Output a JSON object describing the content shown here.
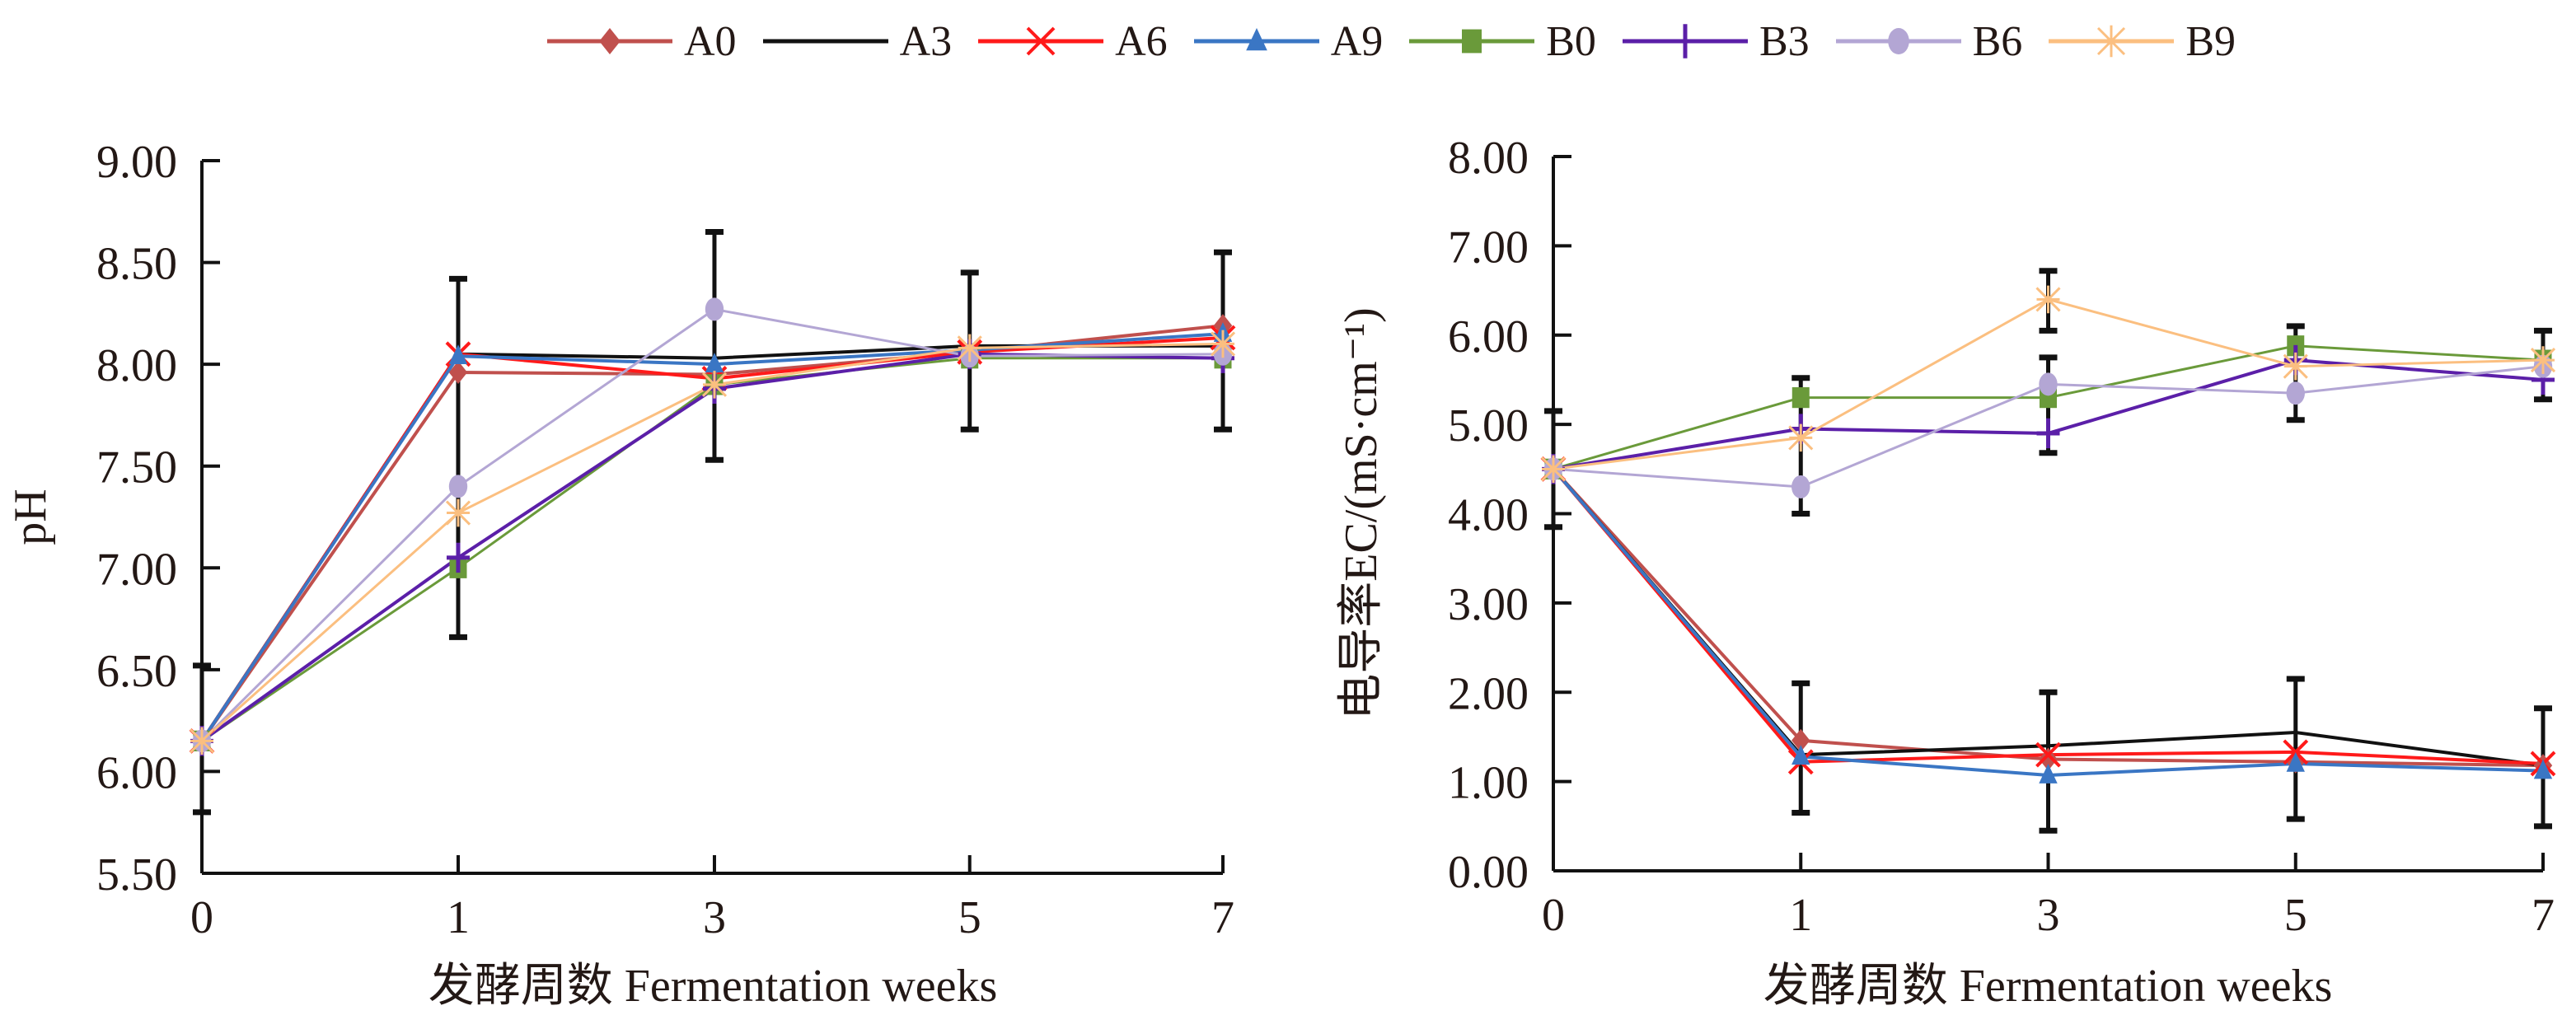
{
  "legend": [
    {
      "name": "A0",
      "color": "#c0504d",
      "marker": "diamond"
    },
    {
      "name": "A3",
      "color": "#111111",
      "marker": "none"
    },
    {
      "name": "A6",
      "color": "#ff1a1a",
      "marker": "x"
    },
    {
      "name": "A9",
      "color": "#3a76c4",
      "marker": "triangle"
    },
    {
      "name": "B0",
      "color": "#6a9a3a",
      "marker": "square"
    },
    {
      "name": "B3",
      "color": "#5b1fa8",
      "marker": "plus"
    },
    {
      "name": "B6",
      "color": "#b3a6d4",
      "marker": "circle"
    },
    {
      "name": "B9",
      "color": "#fbbf80",
      "marker": "star"
    }
  ],
  "chart_data": [
    {
      "type": "line",
      "title": "",
      "xlabel": "发酵周数  Fermentation weeks",
      "ylabel": "pH",
      "categories": [
        "0",
        "1",
        "3",
        "5",
        "7"
      ],
      "ylim": [
        5.5,
        9.0
      ],
      "yticks": [
        "5.50",
        "6.00",
        "6.50",
        "7.00",
        "7.50",
        "8.00",
        "8.50",
        "9.00"
      ],
      "grid": false,
      "legend_position": "top",
      "series": [
        {
          "name": "A0",
          "values": [
            6.15,
            7.96,
            7.95,
            8.06,
            8.19
          ]
        },
        {
          "name": "A3",
          "values": [
            6.15,
            8.05,
            8.03,
            8.09,
            8.09
          ]
        },
        {
          "name": "A6",
          "values": [
            6.15,
            8.05,
            7.93,
            8.06,
            8.13
          ]
        },
        {
          "name": "A9",
          "values": [
            6.15,
            8.04,
            8.0,
            8.07,
            8.15
          ]
        },
        {
          "name": "B0",
          "values": [
            6.15,
            7.0,
            7.9,
            8.03,
            8.03
          ]
        },
        {
          "name": "B3",
          "values": [
            6.15,
            7.05,
            7.88,
            8.05,
            8.03
          ]
        },
        {
          "name": "B6",
          "values": [
            6.15,
            7.4,
            8.27,
            8.04,
            8.05
          ]
        },
        {
          "name": "B9",
          "values": [
            6.15,
            7.27,
            7.9,
            8.08,
            8.1
          ]
        }
      ],
      "error_bars": [
        {
          "x": "0",
          "low": 5.8,
          "high": 6.52
        },
        {
          "x": "1",
          "low": 6.66,
          "high": 8.42
        },
        {
          "x": "3",
          "low": 7.53,
          "high": 8.65
        },
        {
          "x": "5",
          "low": 7.68,
          "high": 8.45
        },
        {
          "x": "7",
          "low": 7.68,
          "high": 8.55
        }
      ]
    },
    {
      "type": "line",
      "title": "",
      "xlabel": "发酵周数  Fermentation weeks",
      "ylabel": "电导率EC/(mS·cm⁻¹)",
      "categories": [
        "0",
        "1",
        "3",
        "5",
        "7"
      ],
      "ylim": [
        0,
        8.0
      ],
      "yticks": [
        "0.00",
        "1.00",
        "2.00",
        "3.00",
        "4.00",
        "5.00",
        "6.00",
        "7.00",
        "8.00"
      ],
      "grid": false,
      "legend_position": "top",
      "series": [
        {
          "name": "A0",
          "values": [
            4.5,
            1.46,
            1.25,
            1.22,
            1.18
          ]
        },
        {
          "name": "A3",
          "values": [
            4.5,
            1.3,
            1.4,
            1.55,
            1.18
          ]
        },
        {
          "name": "A6",
          "values": [
            4.5,
            1.22,
            1.3,
            1.33,
            1.2
          ]
        },
        {
          "name": "A9",
          "values": [
            4.5,
            1.28,
            1.07,
            1.2,
            1.12
          ]
        },
        {
          "name": "B0",
          "values": [
            4.5,
            5.3,
            5.3,
            5.88,
            5.72
          ]
        },
        {
          "name": "B3",
          "values": [
            4.5,
            4.95,
            4.9,
            5.72,
            5.5
          ]
        },
        {
          "name": "B6",
          "values": [
            4.5,
            4.3,
            5.45,
            5.35,
            5.65
          ]
        },
        {
          "name": "B9",
          "values": [
            4.5,
            4.85,
            6.4,
            5.65,
            5.72
          ]
        }
      ],
      "error_bars": [
        {
          "x": "0",
          "low": 3.85,
          "high": 5.15
        },
        {
          "x": "1",
          "low": 0.65,
          "high": 2.1
        },
        {
          "x": "3",
          "low": 0.45,
          "high": 2.0
        },
        {
          "x": "5",
          "low": 0.58,
          "high": 2.15
        },
        {
          "x": "7",
          "low": 0.5,
          "high": 1.82
        },
        {
          "x": "1",
          "low": 4.0,
          "high": 5.52
        },
        {
          "x": "3",
          "low": 4.68,
          "high": 5.75
        },
        {
          "x": "3",
          "low": 6.05,
          "high": 6.72
        },
        {
          "x": "5",
          "low": 5.05,
          "high": 6.1
        },
        {
          "x": "7",
          "low": 5.28,
          "high": 6.05
        }
      ]
    }
  ]
}
